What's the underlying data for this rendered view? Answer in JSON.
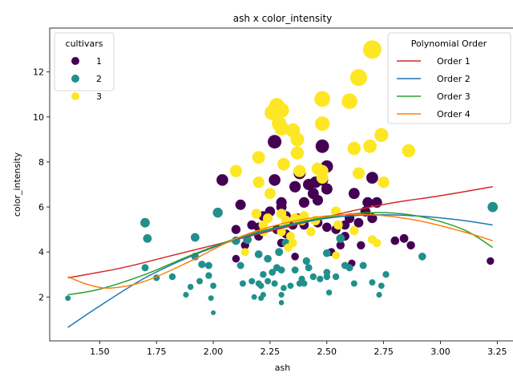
{
  "chart_data": {
    "type": "scatter",
    "title": "ash x color_intensity",
    "xlabel": "ash",
    "ylabel": "color_intensity",
    "xlim": [
      1.28,
      3.33
    ],
    "ylim": [
      0.05,
      13.95
    ],
    "xticks": [
      1.5,
      1.75,
      2.0,
      2.25,
      2.5,
      2.75,
      3.0,
      3.25
    ],
    "yticks": [
      2,
      4,
      6,
      8,
      10,
      12
    ],
    "xtick_labels": [
      "1.50",
      "1.75",
      "2.00",
      "2.25",
      "2.50",
      "2.75",
      "3.00",
      "3.25"
    ],
    "ytick_labels": [
      "2",
      "4",
      "6",
      "8",
      "10",
      "12"
    ],
    "grid": false,
    "point_size_encodes": "color_intensity",
    "hue_legend": {
      "title": "cultivars",
      "position": "top-left",
      "entries": [
        {
          "label": "1",
          "color": "#440154"
        },
        {
          "label": "2",
          "color": "#21908d"
        },
        {
          "label": "3",
          "color": "#fde725"
        }
      ]
    },
    "fit_legend": {
      "title": "Polynomial Order",
      "position": "top-right",
      "entries": [
        {
          "label": "Order 1",
          "color": "#d62728"
        },
        {
          "label": "Order 2",
          "color": "#1f77b4"
        },
        {
          "label": "Order 3",
          "color": "#2ca02c"
        },
        {
          "label": "Order 4",
          "color": "#ff7f0e"
        }
      ]
    },
    "fits": [
      {
        "label": "Order 1",
        "color": "#d62728",
        "x": [
          1.36,
          1.6,
          1.8,
          2.0,
          2.2,
          2.4,
          2.6,
          2.8,
          3.0,
          3.23
        ],
        "y": [
          2.85,
          3.3,
          3.8,
          4.3,
          4.8,
          5.3,
          5.8,
          6.2,
          6.5,
          6.9
        ]
      },
      {
        "label": "Order 2",
        "color": "#1f77b4",
        "x": [
          1.36,
          1.5,
          1.7,
          1.9,
          2.1,
          2.3,
          2.5,
          2.7,
          2.9,
          3.1,
          3.23
        ],
        "y": [
          0.65,
          1.6,
          2.85,
          3.8,
          4.55,
          5.1,
          5.5,
          5.65,
          5.6,
          5.4,
          5.2
        ]
      },
      {
        "label": "Order 3",
        "color": "#2ca02c",
        "x": [
          1.36,
          1.5,
          1.7,
          1.9,
          2.1,
          2.3,
          2.5,
          2.7,
          2.9,
          3.1,
          3.23
        ],
        "y": [
          2.1,
          2.35,
          3.0,
          3.85,
          4.6,
          5.15,
          5.55,
          5.75,
          5.6,
          5.0,
          4.2
        ]
      },
      {
        "label": "Order 4",
        "color": "#ff7f0e",
        "x": [
          1.36,
          1.45,
          1.55,
          1.7,
          1.9,
          2.1,
          2.3,
          2.5,
          2.7,
          2.9,
          3.1,
          3.23
        ],
        "y": [
          2.9,
          2.55,
          2.4,
          2.7,
          3.6,
          4.6,
          5.25,
          5.6,
          5.65,
          5.4,
          4.9,
          4.5
        ]
      }
    ],
    "series": [
      {
        "name": "1",
        "color": "#440154",
        "points": [
          [
            2.04,
            7.2
          ],
          [
            2.1,
            5.0
          ],
          [
            2.12,
            6.1
          ],
          [
            2.14,
            4.3
          ],
          [
            2.17,
            5.2
          ],
          [
            2.1,
            3.7
          ],
          [
            2.2,
            4.7
          ],
          [
            2.22,
            5.6
          ],
          [
            2.25,
            5.8
          ],
          [
            2.27,
            8.9
          ],
          [
            2.27,
            7.2
          ],
          [
            2.28,
            5.0
          ],
          [
            2.3,
            6.2
          ],
          [
            2.3,
            6.0
          ],
          [
            2.3,
            4.4
          ],
          [
            2.32,
            5.6
          ],
          [
            2.32,
            4.8
          ],
          [
            2.35,
            5.2
          ],
          [
            2.36,
            6.9
          ],
          [
            2.37,
            5.5
          ],
          [
            2.38,
            7.5
          ],
          [
            2.4,
            6.2
          ],
          [
            2.4,
            5.2
          ],
          [
            2.42,
            7.0
          ],
          [
            2.44,
            6.6
          ],
          [
            2.45,
            7.1
          ],
          [
            2.46,
            6.3
          ],
          [
            2.46,
            5.3
          ],
          [
            2.48,
            8.7
          ],
          [
            2.48,
            7.2
          ],
          [
            2.5,
            7.8
          ],
          [
            2.5,
            6.8
          ],
          [
            2.5,
            5.1
          ],
          [
            2.52,
            4.0
          ],
          [
            2.54,
            5.0
          ],
          [
            2.56,
            4.3
          ],
          [
            2.58,
            5.2
          ],
          [
            2.6,
            5.5
          ],
          [
            2.61,
            3.5
          ],
          [
            2.62,
            6.6
          ],
          [
            2.64,
            5.3
          ],
          [
            2.65,
            4.3
          ],
          [
            2.67,
            5.8
          ],
          [
            2.68,
            6.2
          ],
          [
            2.7,
            5.5
          ],
          [
            2.7,
            7.3
          ],
          [
            2.72,
            6.2
          ],
          [
            2.8,
            4.5
          ],
          [
            2.84,
            4.6
          ],
          [
            2.87,
            4.3
          ],
          [
            3.22,
            3.6
          ],
          [
            2.36,
            3.8
          ],
          [
            2.2,
            5.1
          ],
          [
            2.58,
            4.7
          ]
        ]
      },
      {
        "name": "2",
        "color": "#21908d",
        "points": [
          [
            1.36,
            1.95
          ],
          [
            1.7,
            5.3
          ],
          [
            1.71,
            4.6
          ],
          [
            1.7,
            3.3
          ],
          [
            1.75,
            2.85
          ],
          [
            1.82,
            2.9
          ],
          [
            1.88,
            2.1
          ],
          [
            1.9,
            2.45
          ],
          [
            1.92,
            3.8
          ],
          [
            1.92,
            4.65
          ],
          [
            1.94,
            2.7
          ],
          [
            1.95,
            3.45
          ],
          [
            1.98,
            3.4
          ],
          [
            1.98,
            2.95
          ],
          [
            1.99,
            1.95
          ],
          [
            2.0,
            1.3
          ],
          [
            2.0,
            2.5
          ],
          [
            2.02,
            5.75
          ],
          [
            2.1,
            4.5
          ],
          [
            2.12,
            3.4
          ],
          [
            2.13,
            2.6
          ],
          [
            2.17,
            2.7
          ],
          [
            2.18,
            2.0
          ],
          [
            2.2,
            3.9
          ],
          [
            2.2,
            2.6
          ],
          [
            2.21,
            2.5
          ],
          [
            2.21,
            1.95
          ],
          [
            2.22,
            2.1
          ],
          [
            2.22,
            3.0
          ],
          [
            2.24,
            2.7
          ],
          [
            2.24,
            3.7
          ],
          [
            2.26,
            3.1
          ],
          [
            2.27,
            2.6
          ],
          [
            2.28,
            3.3
          ],
          [
            2.29,
            4.0
          ],
          [
            2.3,
            2.1
          ],
          [
            2.3,
            1.75
          ],
          [
            2.3,
            3.2
          ],
          [
            2.31,
            2.4
          ],
          [
            2.32,
            4.4
          ],
          [
            2.34,
            2.5
          ],
          [
            2.36,
            3.2
          ],
          [
            2.38,
            2.6
          ],
          [
            2.39,
            2.8
          ],
          [
            2.4,
            2.6
          ],
          [
            2.41,
            3.6
          ],
          [
            2.42,
            3.3
          ],
          [
            2.44,
            2.9
          ],
          [
            2.47,
            2.8
          ],
          [
            2.5,
            2.9
          ],
          [
            2.5,
            3.1
          ],
          [
            2.51,
            2.2
          ],
          [
            2.54,
            2.9
          ],
          [
            2.56,
            4.6
          ],
          [
            2.58,
            3.4
          ],
          [
            2.6,
            3.3
          ],
          [
            2.62,
            2.6
          ],
          [
            2.66,
            3.4
          ],
          [
            2.7,
            2.65
          ],
          [
            2.73,
            2.1
          ],
          [
            2.74,
            2.5
          ],
          [
            2.76,
            3.0
          ],
          [
            2.92,
            3.8
          ],
          [
            3.23,
            6.0
          ],
          [
            2.5,
            3.95
          ],
          [
            2.15,
            4.55
          ]
        ]
      },
      {
        "name": "3",
        "color": "#fde725",
        "points": [
          [
            2.1,
            7.6
          ],
          [
            2.14,
            4.0
          ],
          [
            2.19,
            5.7
          ],
          [
            2.2,
            8.2
          ],
          [
            2.2,
            7.1
          ],
          [
            2.22,
            4.9
          ],
          [
            2.24,
            5.5
          ],
          [
            2.25,
            6.6
          ],
          [
            2.26,
            10.2
          ],
          [
            2.28,
            10.5
          ],
          [
            2.29,
            9.7
          ],
          [
            2.3,
            10.3
          ],
          [
            2.3,
            9.5
          ],
          [
            2.3,
            4.9
          ],
          [
            2.31,
            7.9
          ],
          [
            2.32,
            5.4
          ],
          [
            2.34,
            4.7
          ],
          [
            2.35,
            9.4
          ],
          [
            2.36,
            5.5
          ],
          [
            2.37,
            9.0
          ],
          [
            2.37,
            8.4
          ],
          [
            2.38,
            7.6
          ],
          [
            2.39,
            5.4
          ],
          [
            2.4,
            5.6
          ],
          [
            2.43,
            4.9
          ],
          [
            2.46,
            7.7
          ],
          [
            2.48,
            7.3
          ],
          [
            2.48,
            9.7
          ],
          [
            2.48,
            10.8
          ],
          [
            2.48,
            7.6
          ],
          [
            2.54,
            5.8
          ],
          [
            2.54,
            3.85
          ],
          [
            2.6,
            10.7
          ],
          [
            2.62,
            8.6
          ],
          [
            2.62,
            4.95
          ],
          [
            2.64,
            11.75
          ],
          [
            2.64,
            7.5
          ],
          [
            2.69,
            8.7
          ],
          [
            2.7,
            4.55
          ],
          [
            2.7,
            13.0
          ],
          [
            2.72,
            4.4
          ],
          [
            2.74,
            9.2
          ],
          [
            2.75,
            7.1
          ],
          [
            2.86,
            8.5
          ],
          [
            2.35,
            4.4
          ],
          [
            2.33,
            4.2
          ],
          [
            2.22,
            5.2
          ],
          [
            2.45,
            5.4
          ],
          [
            2.3,
            5.7
          ],
          [
            2.55,
            5.2
          ]
        ]
      }
    ]
  }
}
